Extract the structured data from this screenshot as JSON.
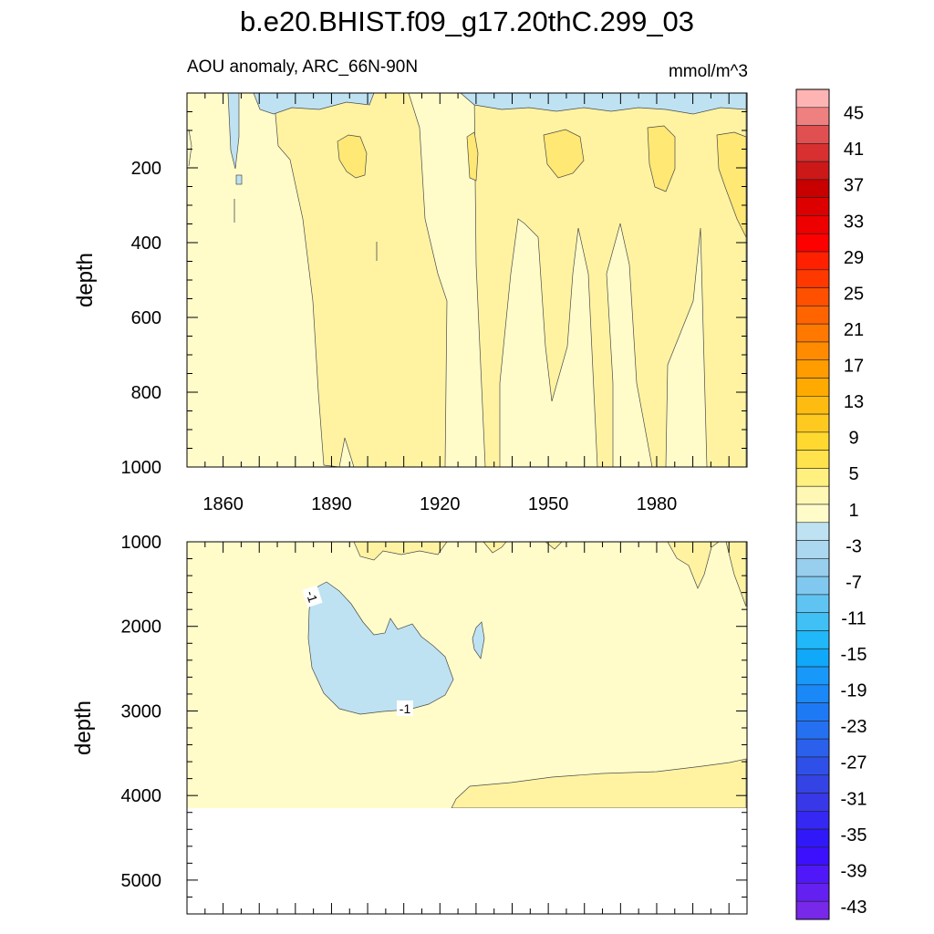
{
  "chart_data": [
    {
      "type": "heatmap",
      "panel": "upper",
      "title": "b.e20.BHIST.f09_g17.20thC.299_03",
      "subtitle": "AOU anomaly, ARC_66N-90N",
      "units": "mmol/m^3",
      "xlabel": "",
      "ylabel": "depth",
      "xlim": [
        1850,
        2005
      ],
      "ylim": [
        1000,
        0
      ],
      "x_ticks": [
        "1860",
        "1890",
        "1920",
        "1950",
        "1980"
      ],
      "y_ticks": [
        "200",
        "400",
        "600",
        "800",
        "1000"
      ],
      "regions": [
        {
          "value": 1,
          "description": "background 1 to 3"
        },
        {
          "value": 3,
          "description": "3 to 5 band in most of column after 1880"
        },
        {
          "value": 5,
          "description": "5 to 7 patches near 100-250 m"
        },
        {
          "value": -1,
          "description": "-3 to 1 patches near surface"
        }
      ]
    },
    {
      "type": "heatmap",
      "panel": "lower",
      "xlabel": "",
      "ylabel": "depth",
      "xlim": [
        1850,
        2005
      ],
      "ylim": [
        5400,
        1000
      ],
      "y_ticks": [
        "1000",
        "2000",
        "3000",
        "4000",
        "5000"
      ],
      "contour_labels": [
        "-1",
        "-1"
      ],
      "regions": [
        {
          "value": 1,
          "description": "background 1 to 3"
        },
        {
          "value": -1,
          "description": "-3 to 1 lens 1500-3000 m, 1885-1925"
        },
        {
          "value": 3,
          "description": "3 to 5 band near 3800-4100 m after 1925"
        }
      ]
    }
  ],
  "colorbar": {
    "labels": [
      "45",
      "41",
      "37",
      "33",
      "29",
      "25",
      "21",
      "17",
      "13",
      "9",
      "5",
      "1",
      "-3",
      "-7",
      "-11",
      "-15",
      "-19",
      "-23",
      "-27",
      "-31",
      "-35",
      "-39",
      "-43"
    ],
    "colors": [
      "#ffb4b4",
      "#ef8080",
      "#e05050",
      "#d83030",
      "#cc1818",
      "#c80000",
      "#dd0000",
      "#ee0000",
      "#ff0000",
      "#ff2000",
      "#ff3800",
      "#ff5000",
      "#ff6400",
      "#ff7800",
      "#ff8c00",
      "#ff9c00",
      "#ffaa00",
      "#ffbc10",
      "#ffca20",
      "#ffd830",
      "#ffe24c",
      "#fff080",
      "#fff8b4",
      "#fffcca",
      "#bee2f2",
      "#abd8f0",
      "#98ceee",
      "#80c8f0",
      "#60c4f2",
      "#40c0f5",
      "#20b8f8",
      "#10a8f8",
      "#1898f8",
      "#1a88f6",
      "#1e7af4",
      "#2470f0",
      "#2a60ec",
      "#2e50e8",
      "#3444e4",
      "#3838e8",
      "#3428f2",
      "#3018f8",
      "#3c10fc",
      "#5018f8",
      "#6420f0",
      "#7828e8"
    ]
  },
  "colors": {
    "c1": "#fffcca",
    "c3": "#fff3a2",
    "c5": "#ffe874",
    "cm1": "#bee2f2",
    "line": "#4a4a4a"
  }
}
